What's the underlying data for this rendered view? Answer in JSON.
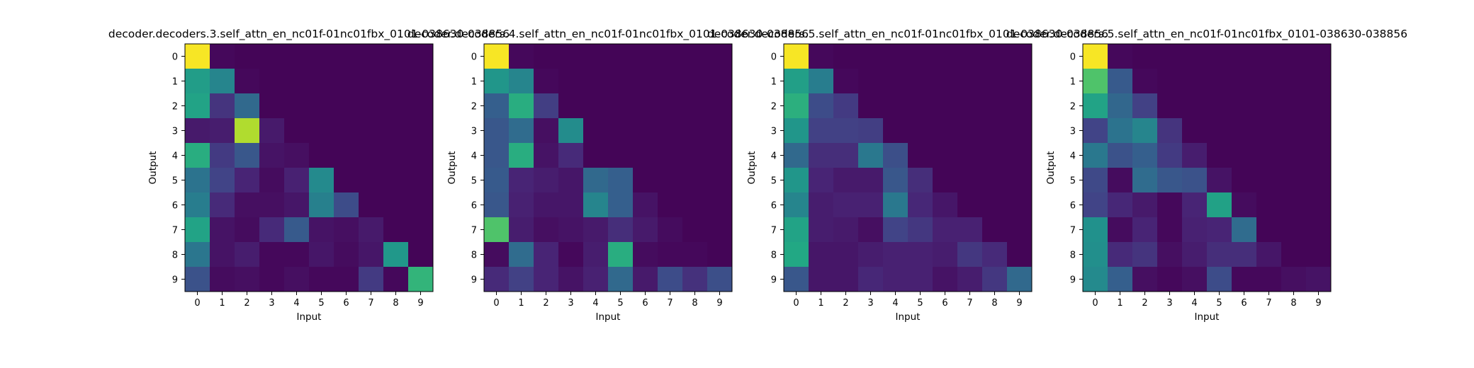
{
  "chart_data": [
    {
      "type": "heatmap",
      "title": "decoder.decoders.3.self_attn_en_nc01f-01nc01fbx_0101-038630-038856",
      "xlabel": "Input",
      "ylabel": "Output",
      "x_ticks": [
        "0",
        "1",
        "2",
        "3",
        "4",
        "5",
        "6",
        "7",
        "8",
        "9"
      ],
      "y_ticks": [
        "0",
        "1",
        "2",
        "3",
        "4",
        "5",
        "6",
        "7",
        "8",
        "9"
      ],
      "colormap": "viridis",
      "value_range": [
        0,
        1
      ],
      "values": [
        [
          0.99,
          0.02,
          0.01,
          0.01,
          0.01,
          0.01,
          0.01,
          0.01,
          0.01,
          0.01
        ],
        [
          0.55,
          0.45,
          0.02,
          0.01,
          0.01,
          0.01,
          0.01,
          0.01,
          0.01,
          0.01
        ],
        [
          0.58,
          0.15,
          0.34,
          0.01,
          0.01,
          0.01,
          0.01,
          0.01,
          0.01,
          0.01
        ],
        [
          0.07,
          0.08,
          0.88,
          0.07,
          0.01,
          0.01,
          0.01,
          0.01,
          0.01,
          0.01
        ],
        [
          0.62,
          0.17,
          0.27,
          0.05,
          0.04,
          0.01,
          0.01,
          0.01,
          0.01,
          0.01
        ],
        [
          0.38,
          0.2,
          0.1,
          0.03,
          0.09,
          0.47,
          0.01,
          0.01,
          0.01,
          0.01
        ],
        [
          0.42,
          0.12,
          0.04,
          0.04,
          0.06,
          0.43,
          0.23,
          0.01,
          0.01,
          0.01
        ],
        [
          0.58,
          0.05,
          0.03,
          0.12,
          0.28,
          0.05,
          0.04,
          0.07,
          0.01,
          0.01
        ],
        [
          0.39,
          0.05,
          0.08,
          0.02,
          0.02,
          0.06,
          0.03,
          0.06,
          0.53,
          0.01
        ],
        [
          0.25,
          0.03,
          0.04,
          0.02,
          0.04,
          0.02,
          0.02,
          0.17,
          0.02,
          0.65
        ]
      ]
    },
    {
      "type": "heatmap",
      "title": "decoder.decoders.4.self_attn_en_nc01f-01nc01fbx_0101-038630-038856",
      "xlabel": "Input",
      "ylabel": "Output",
      "x_ticks": [
        "0",
        "1",
        "2",
        "3",
        "4",
        "5",
        "6",
        "7",
        "8",
        "9"
      ],
      "y_ticks": [
        "0",
        "1",
        "2",
        "3",
        "4",
        "5",
        "6",
        "7",
        "8",
        "9"
      ],
      "colormap": "viridis",
      "value_range": [
        0,
        1
      ],
      "values": [
        [
          0.99,
          0.02,
          0.01,
          0.01,
          0.01,
          0.01,
          0.01,
          0.01,
          0.01,
          0.01
        ],
        [
          0.52,
          0.45,
          0.02,
          0.01,
          0.01,
          0.01,
          0.01,
          0.01,
          0.01,
          0.01
        ],
        [
          0.3,
          0.62,
          0.18,
          0.01,
          0.01,
          0.01,
          0.01,
          0.01,
          0.01,
          0.01
        ],
        [
          0.27,
          0.35,
          0.04,
          0.48,
          0.01,
          0.01,
          0.01,
          0.01,
          0.01,
          0.01
        ],
        [
          0.27,
          0.62,
          0.05,
          0.12,
          0.01,
          0.01,
          0.01,
          0.01,
          0.01,
          0.01
        ],
        [
          0.28,
          0.1,
          0.08,
          0.06,
          0.34,
          0.3,
          0.01,
          0.01,
          0.01,
          0.01
        ],
        [
          0.27,
          0.09,
          0.06,
          0.06,
          0.45,
          0.3,
          0.05,
          0.01,
          0.01,
          0.01
        ],
        [
          0.72,
          0.08,
          0.04,
          0.05,
          0.07,
          0.13,
          0.07,
          0.03,
          0.01,
          0.01
        ],
        [
          0.03,
          0.35,
          0.1,
          0.02,
          0.08,
          0.62,
          0.03,
          0.02,
          0.02,
          0.01
        ],
        [
          0.12,
          0.19,
          0.1,
          0.05,
          0.09,
          0.34,
          0.07,
          0.23,
          0.14,
          0.24
        ]
      ]
    },
    {
      "type": "heatmap",
      "title": "decoder.decoders.5.self_attn_en_nc01f-01nc01fbx_0101-038630-038856",
      "xlabel": "Input",
      "ylabel": "Output",
      "x_ticks": [
        "0",
        "1",
        "2",
        "3",
        "4",
        "5",
        "6",
        "7",
        "8",
        "9"
      ],
      "y_ticks": [
        "0",
        "1",
        "2",
        "3",
        "4",
        "5",
        "6",
        "7",
        "8",
        "9"
      ],
      "colormap": "viridis",
      "value_range": [
        0,
        1
      ],
      "values": [
        [
          0.99,
          0.02,
          0.01,
          0.01,
          0.01,
          0.01,
          0.01,
          0.01,
          0.01,
          0.01
        ],
        [
          0.56,
          0.42,
          0.02,
          0.01,
          0.01,
          0.01,
          0.01,
          0.01,
          0.01,
          0.01
        ],
        [
          0.63,
          0.23,
          0.17,
          0.01,
          0.01,
          0.01,
          0.01,
          0.01,
          0.01,
          0.01
        ],
        [
          0.52,
          0.19,
          0.19,
          0.18,
          0.01,
          0.01,
          0.01,
          0.01,
          0.01,
          0.01
        ],
        [
          0.34,
          0.13,
          0.13,
          0.4,
          0.24,
          0.01,
          0.01,
          0.01,
          0.01,
          0.01
        ],
        [
          0.52,
          0.1,
          0.07,
          0.07,
          0.27,
          0.13,
          0.01,
          0.01,
          0.01,
          0.01
        ],
        [
          0.45,
          0.08,
          0.09,
          0.09,
          0.4,
          0.11,
          0.06,
          0.01,
          0.01,
          0.01
        ],
        [
          0.58,
          0.08,
          0.07,
          0.04,
          0.2,
          0.16,
          0.09,
          0.09,
          0.01,
          0.01
        ],
        [
          0.6,
          0.06,
          0.06,
          0.08,
          0.09,
          0.09,
          0.08,
          0.16,
          0.12,
          0.01
        ],
        [
          0.27,
          0.06,
          0.06,
          0.11,
          0.09,
          0.09,
          0.05,
          0.08,
          0.16,
          0.34
        ]
      ]
    },
    {
      "type": "heatmap",
      "title": "decoder.decoders.5.self_attn_en_nc01f-01nc01fbx_0101-038630-038856",
      "xlabel": "Input",
      "ylabel": "Output",
      "x_ticks": [
        "0",
        "1",
        "2",
        "3",
        "4",
        "5",
        "6",
        "7",
        "8",
        "9"
      ],
      "y_ticks": [
        "0",
        "1",
        "2",
        "3",
        "4",
        "5",
        "6",
        "7",
        "8",
        "9"
      ],
      "colormap": "viridis",
      "value_range": [
        0,
        1
      ],
      "values": [
        [
          0.99,
          0.02,
          0.01,
          0.01,
          0.01,
          0.01,
          0.01,
          0.01,
          0.01,
          0.01
        ],
        [
          0.72,
          0.28,
          0.02,
          0.01,
          0.01,
          0.01,
          0.01,
          0.01,
          0.01,
          0.01
        ],
        [
          0.58,
          0.33,
          0.19,
          0.01,
          0.01,
          0.01,
          0.01,
          0.01,
          0.01,
          0.01
        ],
        [
          0.2,
          0.38,
          0.45,
          0.15,
          0.01,
          0.01,
          0.01,
          0.01,
          0.01,
          0.01
        ],
        [
          0.4,
          0.25,
          0.3,
          0.17,
          0.08,
          0.01,
          0.01,
          0.01,
          0.01,
          0.01
        ],
        [
          0.22,
          0.03,
          0.35,
          0.27,
          0.25,
          0.05,
          0.01,
          0.01,
          0.01,
          0.01
        ],
        [
          0.2,
          0.11,
          0.07,
          0.02,
          0.1,
          0.57,
          0.03,
          0.01,
          0.01,
          0.01
        ],
        [
          0.5,
          0.03,
          0.1,
          0.02,
          0.09,
          0.1,
          0.35,
          0.01,
          0.01,
          0.01
        ],
        [
          0.49,
          0.12,
          0.15,
          0.04,
          0.08,
          0.13,
          0.13,
          0.06,
          0.01,
          0.01
        ],
        [
          0.47,
          0.3,
          0.04,
          0.02,
          0.04,
          0.23,
          0.02,
          0.02,
          0.04,
          0.05
        ]
      ]
    }
  ]
}
